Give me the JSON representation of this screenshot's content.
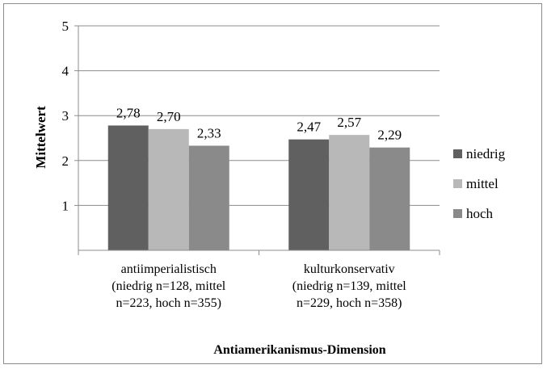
{
  "chart_data": {
    "type": "bar",
    "title": "",
    "xlabel": "Antiamerikanismus-Dimension",
    "ylabel": "Mittelwert",
    "ylim": [
      0,
      5
    ],
    "yticks": [
      "5",
      "4",
      "3",
      "2",
      "1"
    ],
    "grid": true,
    "legend_position": "right",
    "categories": [
      [
        "antiimperialistisch",
        "(niedrig n=128, mittel",
        "n=223, hoch n=355)"
      ],
      [
        "kulturkonservativ",
        "(niedrig n=139, mittel",
        "n=229, hoch n=358)"
      ]
    ],
    "series": [
      {
        "name": "niedrig",
        "color": "#606060",
        "values": [
          2.78,
          2.47
        ],
        "labels": [
          "2,78",
          "2,47"
        ]
      },
      {
        "name": "mittel",
        "color": "#b8b8b8",
        "values": [
          2.7,
          2.57
        ],
        "labels": [
          "2,70",
          "2,57"
        ]
      },
      {
        "name": "hoch",
        "color": "#8a8a8a",
        "values": [
          2.33,
          2.29
        ],
        "labels": [
          "2,33",
          "2,29"
        ]
      }
    ]
  }
}
